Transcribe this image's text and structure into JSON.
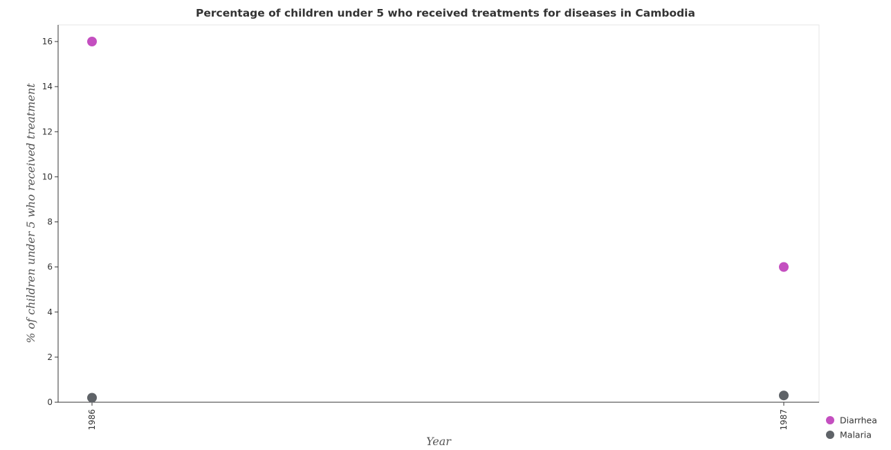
{
  "chart_data": {
    "type": "scatter",
    "title": "Percentage of children under 5 who received treatments for diseases in Cambodia",
    "xlabel": "Year",
    "ylabel": "% of children under 5 who received treatment",
    "categories": [
      "1986",
      "1987"
    ],
    "series": [
      {
        "name": "Diarrhea",
        "color": "#c44fc0",
        "values": [
          16,
          6
        ]
      },
      {
        "name": "Malaria",
        "color": "#5f6368",
        "values": [
          0.2,
          0.3
        ]
      }
    ],
    "ylim": [
      0,
      17
    ],
    "yticks": [
      0,
      2,
      4,
      6,
      8,
      10,
      12,
      14,
      16
    ],
    "grid": false,
    "legend_position": "bottom-right"
  }
}
